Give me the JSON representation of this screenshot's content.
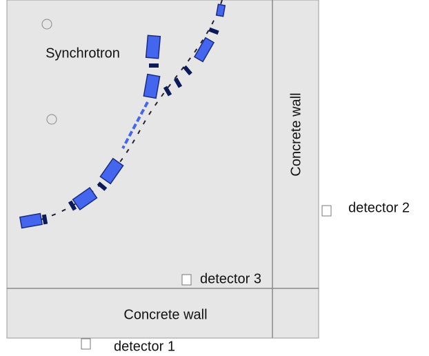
{
  "labels": {
    "synchrotron": "Synchrotron",
    "wall_right": "Concrete wall",
    "wall_bottom": "Concrete wall"
  },
  "detectors": [
    "detector 1",
    "detector 2",
    "detector 3"
  ]
}
